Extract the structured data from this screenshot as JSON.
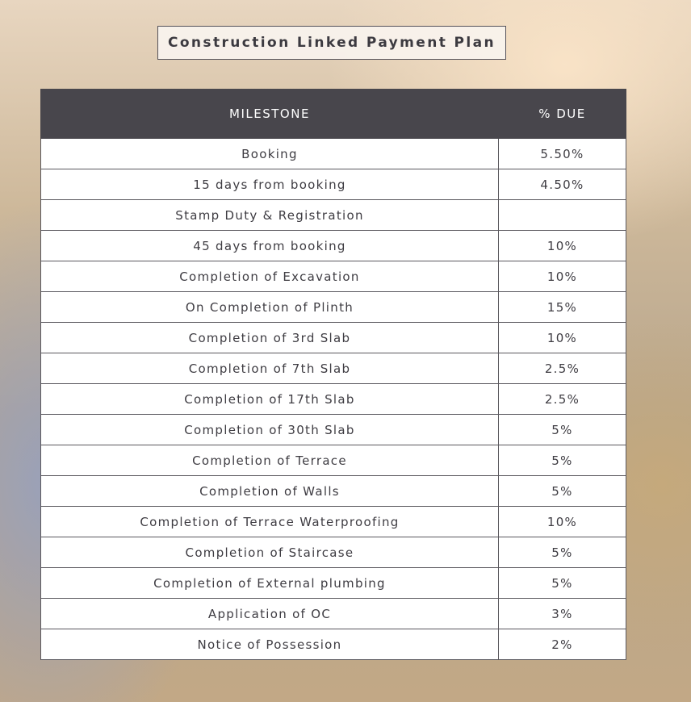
{
  "title": "Construction Linked Payment Plan",
  "table": {
    "header": [
      "MILESTONE",
      "% DUE"
    ],
    "rows": [
      [
        "Booking",
        "5.50%"
      ],
      [
        "15 days from booking",
        "4.50%"
      ],
      [
        "Stamp Duty & Registration",
        null
      ],
      [
        "45 days from booking",
        "10%"
      ],
      [
        "Completion of Excavation",
        "10%"
      ],
      [
        "On Completion of Plinth",
        "15%"
      ],
      [
        "Completion of 3rd Slab",
        "10%"
      ],
      [
        "Completion of 7th Slab",
        "2.5%"
      ],
      [
        "Completion of 17th Slab",
        "2.5%"
      ],
      [
        "Completion of 30th Slab",
        "5%"
      ],
      [
        "Completion of Terrace",
        "5%"
      ],
      [
        "Completion of Walls",
        "5%"
      ],
      [
        "Completion of Terrace Waterproofing",
        "10%"
      ],
      [
        "Completion of Staircase",
        "5%"
      ],
      [
        "Completion of External plumbing",
        "5%"
      ],
      [
        "Application of OC",
        "3%"
      ],
      [
        "Notice of Possession",
        "2%"
      ]
    ]
  }
}
